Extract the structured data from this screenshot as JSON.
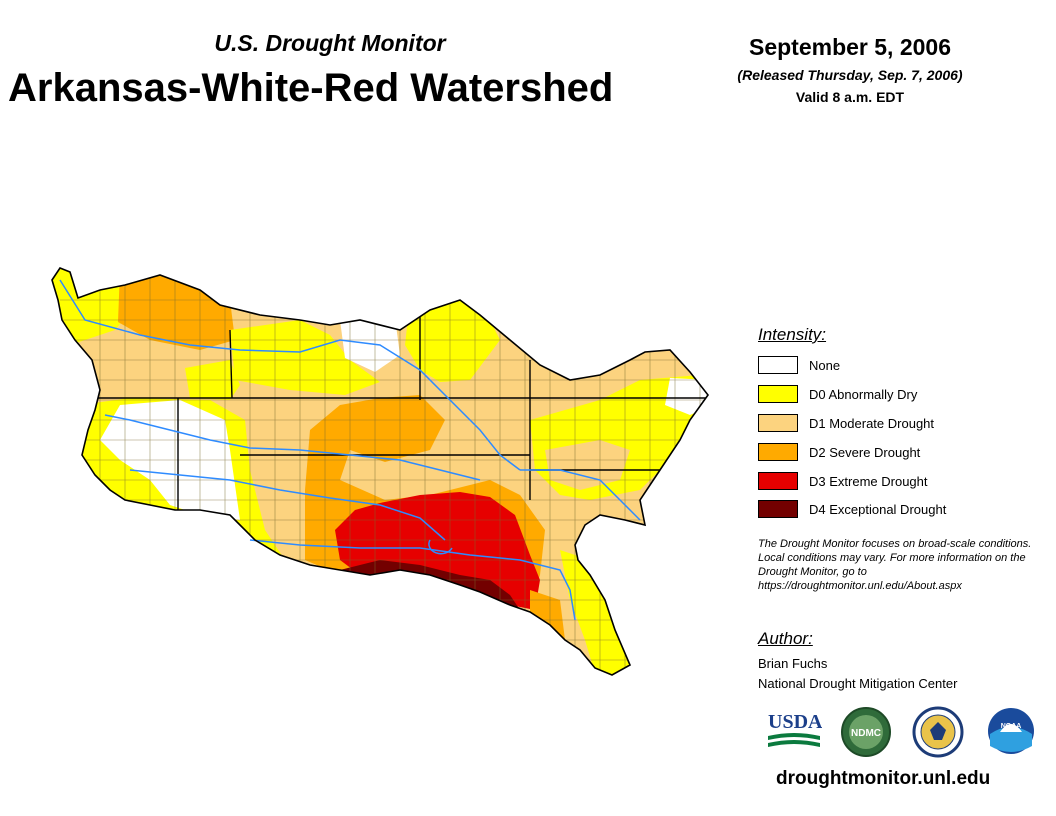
{
  "header": {
    "subtitle": "U.S. Drought Monitor",
    "title": "Arkansas-White-Red Watershed",
    "date": "September 5, 2006",
    "released": "(Released Thursday, Sep. 7, 2006)",
    "valid": "Valid 8 a.m. EDT"
  },
  "legend": {
    "heading": "Intensity:",
    "items": [
      {
        "label": "None",
        "color": "#ffffff"
      },
      {
        "label": "D0 Abnormally Dry",
        "color": "#ffff00"
      },
      {
        "label": "D1 Moderate Drought",
        "color": "#fcd37f"
      },
      {
        "label": "D2 Severe Drought",
        "color": "#ffaa00"
      },
      {
        "label": "D3 Extreme Drought",
        "color": "#e60000"
      },
      {
        "label": "D4 Exceptional Drought",
        "color": "#730000"
      }
    ]
  },
  "note": "The Drought Monitor focuses on broad-scale conditions. Local conditions may vary. For more information on the Drought Monitor, go to https://droughtmonitor.unl.edu/About.aspx",
  "author": {
    "heading": "Author:",
    "name": "Brian Fuchs",
    "org": "National Drought Mitigation Center"
  },
  "logos": {
    "usda": "USDA",
    "ndmc": "NDMC",
    "doc": "department-of-commerce-seal-icon",
    "noaa": "NOAA"
  },
  "url": "droughtmonitor.unl.edu"
}
